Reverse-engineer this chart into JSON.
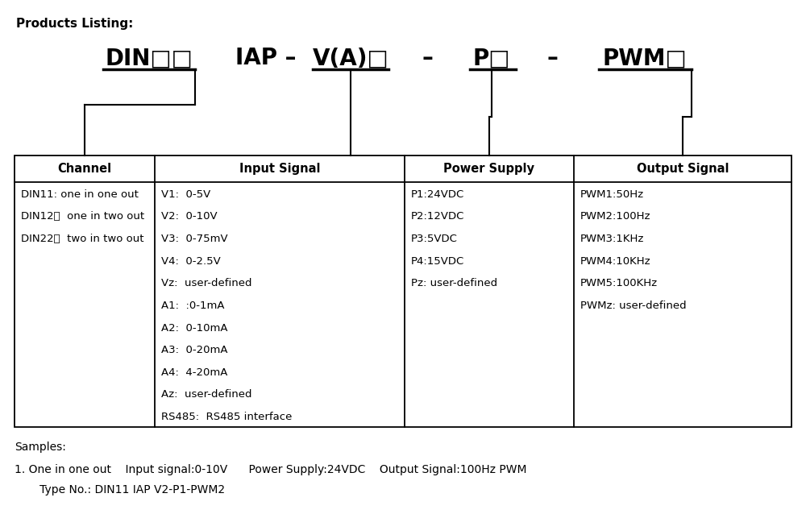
{
  "title": "Products Listing:",
  "header_row": [
    "Channel",
    "Input Signal",
    "Power Supply",
    "Output Signal"
  ],
  "col1": [
    "DIN11: one in one out",
    "DIN12：  one in two out",
    "DIN22：  two in two out"
  ],
  "col2": [
    "V1:  0-5V",
    "V2:  0-10V",
    "V3:  0-75mV",
    "V4:  0-2.5V",
    "Vz:  user-defined",
    "A1:  :0-1mA",
    "A2:  0-10mA",
    "A3:  0-20mA",
    "A4:  4-20mA",
    "Az:  user-defined",
    "RS485:  RS485 interface"
  ],
  "col3": [
    "P1:24VDC",
    "P2:12VDC",
    "P3:5VDC",
    "P4:15VDC",
    "Pz: user-defined"
  ],
  "col4": [
    "PWM1:50Hz",
    "PWM2:100Hz",
    "PWM3:1KHz",
    "PWM4:10KHz",
    "PWM5:100KHz",
    "PWMz: user-defined"
  ],
  "samples_line1": "Samples:",
  "samples_line2": "1. One in one out    Input signal:0-10V      Power Supply:24VDC    Output Signal:100Hz PWM",
  "samples_line3": "   Type No.: DIN11 IAP V2-P1-PWM2",
  "bg_color": "#ffffff",
  "text_color": "#000000"
}
